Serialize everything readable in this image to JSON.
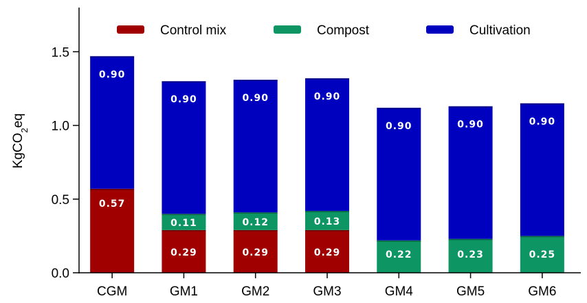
{
  "chart_data": {
    "type": "bar",
    "stacked": true,
    "categories": [
      "CGM",
      "GM1",
      "GM2",
      "GM3",
      "GM4",
      "GM5",
      "GM6"
    ],
    "series": [
      {
        "name": "Control mix",
        "color": "#a00000",
        "values": [
          0.57,
          0.29,
          0.29,
          0.29,
          0,
          0,
          0
        ],
        "labels": [
          "0.57",
          "0.29",
          "0.29",
          "0.29",
          "",
          "",
          ""
        ]
      },
      {
        "name": "Compost",
        "color": "#0d9563",
        "values": [
          0,
          0.11,
          0.12,
          0.13,
          0.22,
          0.23,
          0.25
        ],
        "labels": [
          "",
          "0.11",
          "0.12",
          "0.13",
          "0.22",
          "0.23",
          "0.25"
        ]
      },
      {
        "name": "Cultivation",
        "color": "#0000bf",
        "values": [
          0.9,
          0.9,
          0.9,
          0.9,
          0.9,
          0.9,
          0.9
        ],
        "labels": [
          "0.90",
          "0.90",
          "0.90",
          "0.90",
          "0.90",
          "0.90",
          "0.90"
        ]
      }
    ],
    "ylabel": {
      "main": "KgCO",
      "sub": "2",
      "tail": "eq"
    },
    "ylim": [
      0,
      1.8
    ],
    "yticks": [
      "0.0",
      "0.5",
      "1.0",
      "1.5"
    ],
    "grid": false,
    "legend_position": "top"
  }
}
